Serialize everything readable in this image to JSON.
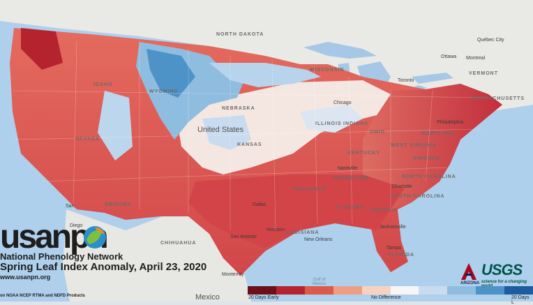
{
  "title": "Spring Leaf Index Anomaly, April 23, 2020",
  "organization": "National Phenology Network",
  "logo_text": "usanpn",
  "url": "www.usanpn.org",
  "source": "on NOAA NCEP RTMA and NDFD Products",
  "partner_logos": [
    "ARIZONA",
    "USGS"
  ],
  "partner_tagline": "science for a changing world",
  "legend": {
    "colors": [
      "#6d0f19",
      "#b5242e",
      "#dc5a4c",
      "#ee9e84",
      "#f8d2c1",
      "#f7f6f4",
      "#c9dcef",
      "#8fbddf",
      "#4d93c8",
      "#1e5c9f"
    ],
    "labels": {
      "left": "20 Days Early",
      "center": "No Difference",
      "right": "20 Days L"
    }
  },
  "labels": {
    "countries": {
      "us": "United States",
      "mexico": "Mexico"
    },
    "states": {
      "idaho": "IDAHO",
      "wyoming": "WYOMING",
      "nebraska": "NEBRASKA",
      "kansas": "KANSAS",
      "north_dakota": "NORTH DAKOTA",
      "wisconsin": "WISCONSIN",
      "illinois": "ILLINOIS",
      "indiana": "INDIANA",
      "arkansas": "ARKANSAS",
      "tennessee": "TENNESSEE",
      "alabama": "ALABAMA",
      "georgia": "GEORGIA",
      "louisiana": "LOUISIANA",
      "virginia": "VIRGINIA",
      "north_carolina": "NORTH CAROLINA",
      "south_carolina": "SOUTH CAROLINA",
      "maryland": "MARYLAND",
      "vermont": "VERMONT",
      "massachusetts": "MASSACHUSETTS",
      "florida": "FLORIDA",
      "nevada": "NEVADA",
      "arizona": "ARIZONA",
      "chihuahua": "CHIHUAHUA",
      "ohio": "OHIO",
      "west_virginia": "WEST VIRGINIA",
      "kentucky": "KENTUCKY"
    },
    "cities": {
      "quebec": "Québec City",
      "ottawa": "Ottawa",
      "montreal": "Montreal",
      "toronto": "Toronto",
      "chicago": "Chicago",
      "philadelphia": "Philadelphia",
      "dallas": "Dallas",
      "san_antonio": "San Antonio",
      "houston": "Houston",
      "jacksonville": "Jacksonville",
      "nashville": "Nashville",
      "charlotte": "Charlotte",
      "monterrey": "Monterrey",
      "san": "San",
      "san_diego": "Diego",
      "new_orleans": "New Orleans",
      "tampa": "Tampa"
    },
    "water": {
      "gulf": "Gulf of\nMexico"
    }
  }
}
